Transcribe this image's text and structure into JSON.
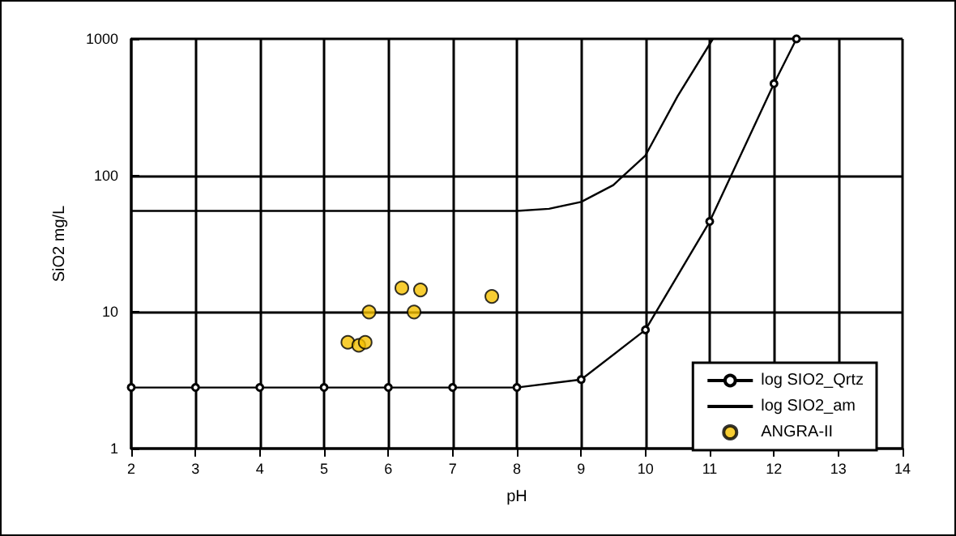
{
  "chart_data": {
    "type": "line",
    "xlabel": "pH",
    "ylabel": "SiO2 mg/L",
    "xlim": [
      2,
      14
    ],
    "xticks": [
      2,
      3,
      4,
      5,
      6,
      7,
      8,
      9,
      10,
      11,
      12,
      13,
      14
    ],
    "ylim": [
      1,
      1000
    ],
    "yticks": [
      1,
      10,
      100,
      1000
    ],
    "log": "y",
    "grid": true,
    "legend": "bottom right",
    "series": [
      {
        "name": "log SIO2_Qrtz",
        "color": "#000000",
        "marker": "circle",
        "x": [
          2,
          3,
          4,
          5,
          6,
          7,
          8,
          9,
          10,
          11,
          12,
          12.35
        ],
        "values": [
          2.8,
          2.8,
          2.8,
          2.8,
          2.8,
          2.8,
          2.8,
          3.2,
          7.4,
          46,
          470,
          1000
        ]
      },
      {
        "name": "log SIO2_am",
        "color": "#000000",
        "marker": "none",
        "x": [
          2,
          3,
          4,
          5,
          6,
          7,
          8,
          8.5,
          9,
          9.5,
          10,
          10.5,
          11.05
        ],
        "values": [
          55,
          55,
          55,
          55,
          55,
          55,
          55,
          57,
          64,
          85,
          140,
          380,
          1000
        ]
      },
      {
        "name": "ANGRA-II",
        "type": "scatter",
        "color": "#f5c000",
        "marker": "circle",
        "x": [
          5.37,
          5.54,
          5.64,
          5.7,
          6.21,
          6.5,
          6.4,
          7.61
        ],
        "values": [
          6.0,
          5.7,
          6.0,
          10,
          15,
          14.5,
          10,
          13
        ]
      }
    ]
  }
}
